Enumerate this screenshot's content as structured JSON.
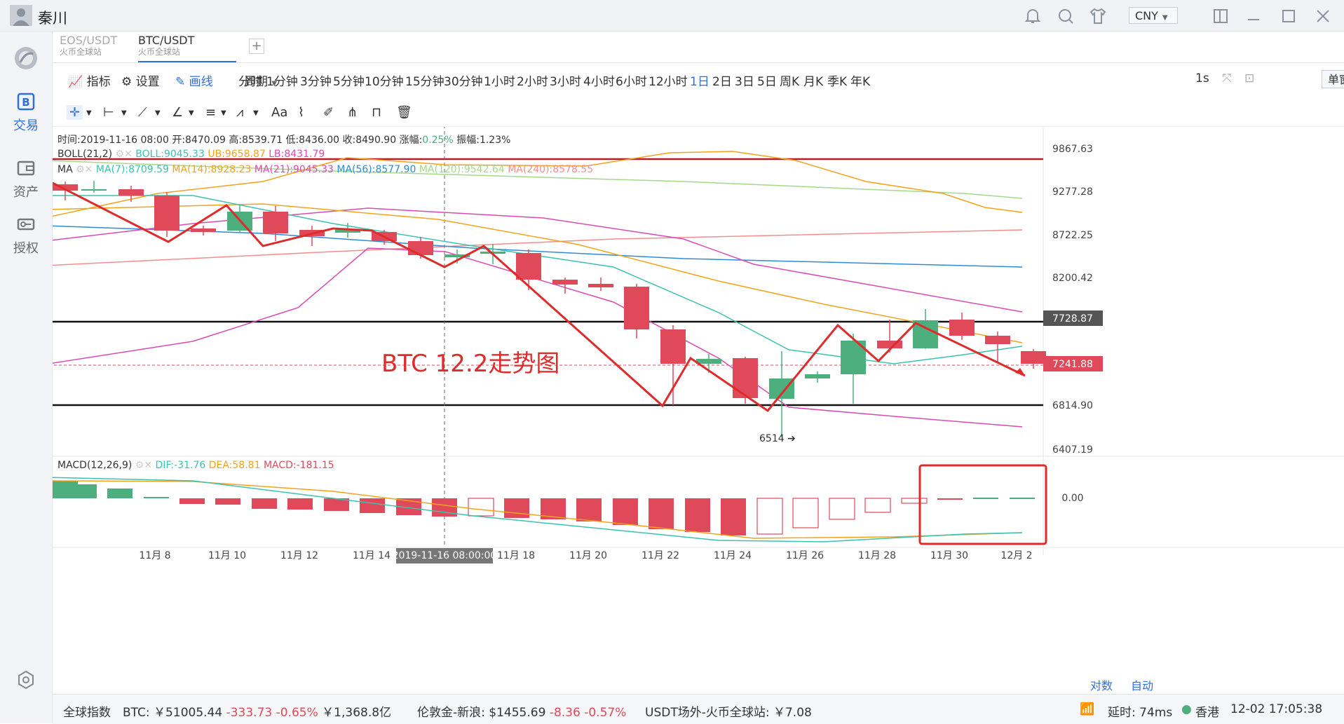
{
  "window": {
    "user_name": "秦川",
    "currency": "CNY"
  },
  "sidebar": {
    "items": [
      {
        "label": "交易",
        "icon": "exchange-icon"
      },
      {
        "label": "资产",
        "icon": "wallet-icon"
      },
      {
        "label": "授权",
        "icon": "key-icon"
      }
    ]
  },
  "tabs": [
    {
      "symbol": "EOS/USDT",
      "source": "火币全球站"
    },
    {
      "symbol": "BTC/USDT",
      "source": "火币全球站"
    }
  ],
  "toolbar": {
    "indicator": "指标",
    "settings": "设置",
    "draw": "画线",
    "period": "周期",
    "periods": [
      "分时",
      "1分钟",
      "3分钟",
      "5分钟",
      "10分钟",
      "15分钟",
      "30分钟",
      "1小时",
      "2小时",
      "3小时",
      "4小时",
      "6小时",
      "12小时",
      "1日",
      "2日",
      "3日",
      "5日",
      "周K",
      "月K",
      "季K",
      "年K"
    ],
    "selected_period": "1日",
    "interval": "1s",
    "window_mode": "单窗口",
    "text_tool": "Aa"
  },
  "info_line": "时间:2019-11-16 08:00  开:8470.09  高:8539.71  低:8436.00  收:8490.90  涨幅:",
  "info_change": "0.25%",
  "info_amp": "  振幅:1.23%",
  "boll": {
    "name": "BOLL(21,2)",
    "boll": "BOLL:9045.33",
    "ub": "UB:9658.87",
    "lb": "LB:8431.79"
  },
  "ma": {
    "name": "MA",
    "values": [
      "MA(7):8709.59",
      "MA(14):8928.23",
      "MA(21):9045.33",
      "MA(56):8577.90",
      "MA(120):9542.64",
      "MA(240):8578.55"
    ]
  },
  "macd": {
    "name": "MACD(12,26,9)",
    "dif": "DIF:-31.76",
    "dea": "DEA:58.81",
    "macd": "MACD:-181.15",
    "zero_label": "0.00"
  },
  "price_axis": [
    "9867.63",
    "9277.28",
    "8722.25",
    "8200.42",
    "7728.87",
    "7241.88",
    "6814.90",
    "6407.19"
  ],
  "date_axis": [
    "11月 8",
    "11月 10",
    "11月 12",
    "11月 14",
    "11月 18",
    "11月 20",
    "11月 22",
    "11月 24",
    "11月 26",
    "11月 28",
    "11月 30",
    "12月 2"
  ],
  "crosshair_date": "2019-11-16 08:00:00",
  "low_marker": "6514",
  "annotation": "BTC 12.2走势图",
  "bottom_links": {
    "duibi": "对数",
    "auto": "自动"
  },
  "status": {
    "global_index": "全球指数",
    "btc_label": "BTC:",
    "btc_price": "￥51005.44",
    "btc_change": "-333.73",
    "btc_pct": "-0.65%",
    "btc_volume": "￥1,368.8亿",
    "gold_label": "伦敦金-新浪:",
    "gold_price": "$1455.69",
    "gold_change": "-8.36",
    "gold_pct": "-0.57%",
    "usdt_label": "USDT场外-火币全球站:",
    "usdt_price": "￥7.08",
    "latency": "延时: 74ms",
    "region": "香港",
    "time": "12-02 17:05:38"
  },
  "colors": {
    "up": "#4caf7d",
    "down": "#e0495a",
    "accent": "#2e6fe0"
  }
}
